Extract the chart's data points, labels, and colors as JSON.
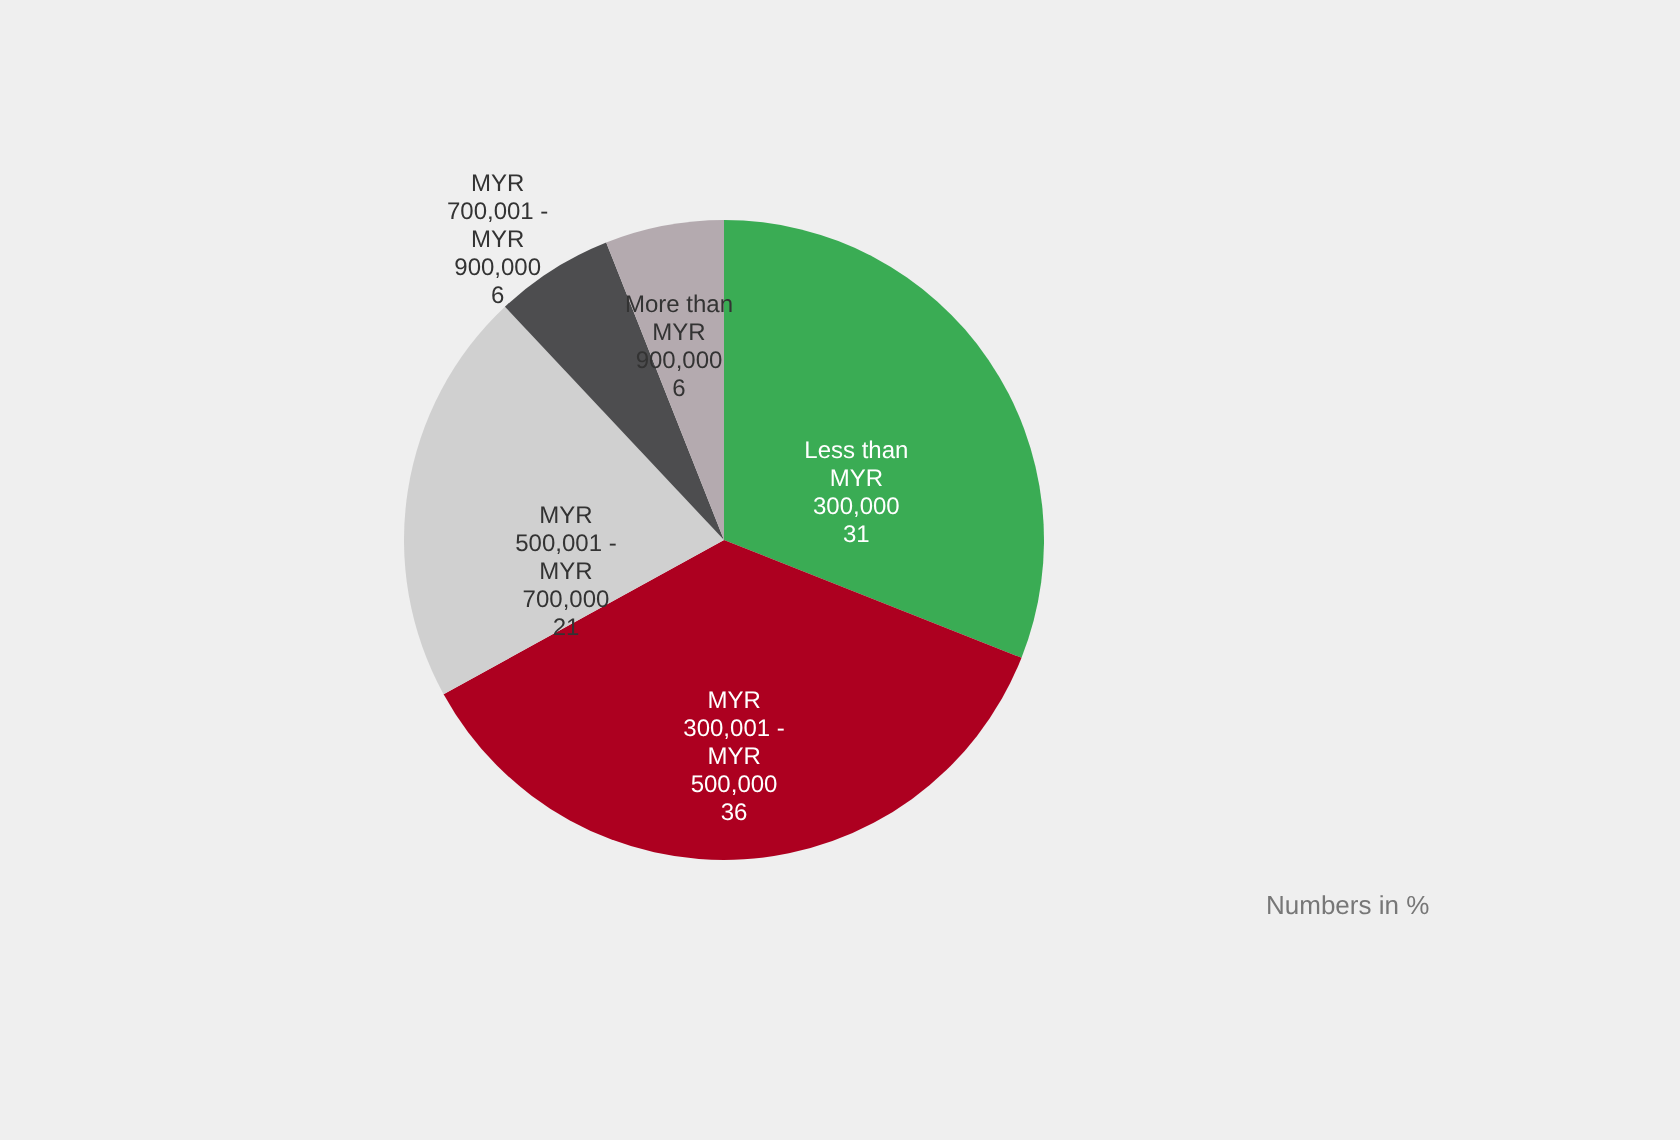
{
  "chart_data": {
    "type": "pie",
    "categories": [
      "Less than MYR 300,000",
      "MYR 300,001 - MYR 500,000",
      "MYR 500,001 - MYR 700,000",
      "MYR 700,001 - MYR 900,000",
      "More than MYR 900,000"
    ],
    "values": [
      31,
      36,
      21,
      6,
      6
    ],
    "colors": [
      "#3aac54",
      "#ad0020",
      "#d0d0d0",
      "#4d4d4f",
      "#b4aaaf"
    ],
    "data_labels": true,
    "annotations": [
      "Numbers in %"
    ]
  }
}
